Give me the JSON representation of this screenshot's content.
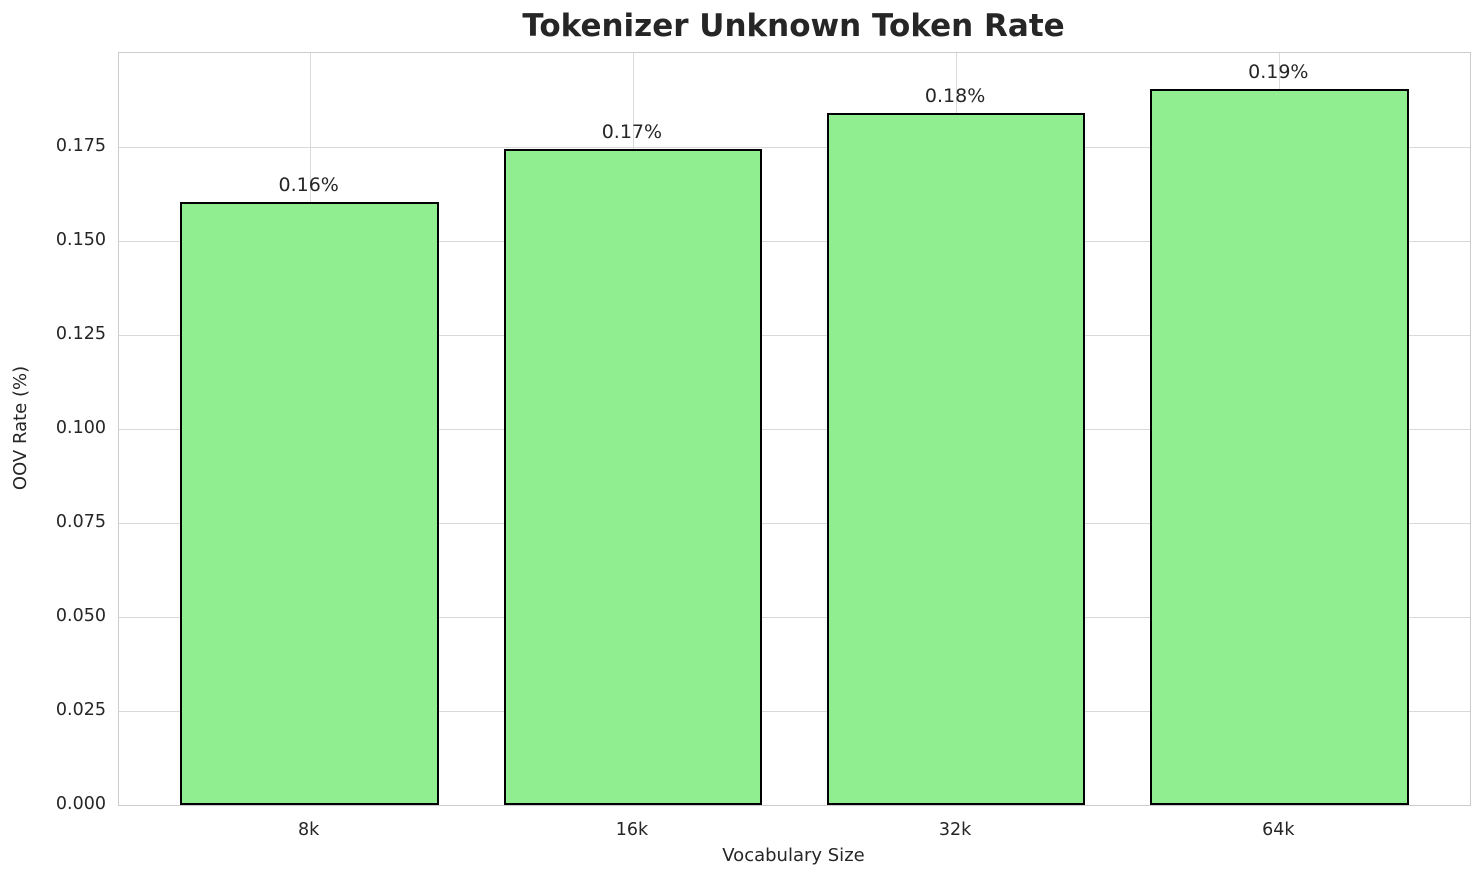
{
  "chart_data": {
    "type": "bar",
    "title": "Tokenizer Unknown Token Rate",
    "xlabel": "Vocabulary Size",
    "ylabel": "OOV Rate (%)",
    "categories": [
      "8k",
      "16k",
      "32k",
      "64k"
    ],
    "values": [
      0.1605,
      0.1745,
      0.184,
      0.1905
    ],
    "bar_labels": [
      "0.16%",
      "0.17%",
      "0.18%",
      "0.19%"
    ],
    "ylim": [
      0,
      0.2
    ],
    "yticks": [
      0,
      0.025,
      0.05,
      0.075,
      0.1,
      0.125,
      0.15,
      0.175
    ],
    "ytick_labels": [
      "0.000",
      "0.025",
      "0.050",
      "0.075",
      "0.100",
      "0.125",
      "0.150",
      "0.175"
    ],
    "grid": true,
    "legend_position": "none",
    "colors": {
      "bar_fill": "#90EE90",
      "bar_edge": "#000000",
      "grid": "#d9d9d9",
      "spine": "#cccccc",
      "text": "#262626"
    }
  }
}
